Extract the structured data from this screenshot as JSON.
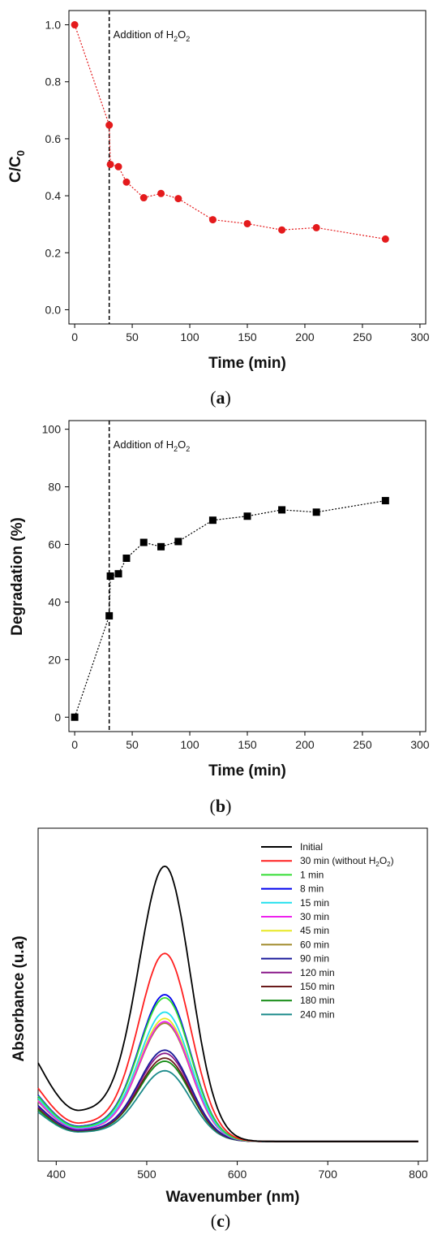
{
  "panels": [
    {
      "caption_open": "(",
      "caption_letter": "a",
      "caption_close": ")"
    },
    {
      "caption_open": "(",
      "caption_letter": "b",
      "caption_close": ")"
    },
    {
      "caption_open": "(",
      "caption_letter": "c",
      "caption_close": ")"
    }
  ],
  "chart_data": [
    {
      "type": "line",
      "xlabel": "Time (min)",
      "ylabel": "C/C0",
      "xlim": [
        -5,
        305
      ],
      "ylim": [
        -0.05,
        1.05
      ],
      "xticks": [
        0,
        50,
        100,
        150,
        200,
        250,
        300
      ],
      "yticks": [
        0.0,
        0.2,
        0.4,
        0.6,
        0.8,
        1.0
      ],
      "ytick_labels": [
        "0.0",
        "0.2",
        "0.4",
        "0.6",
        "0.8",
        "1.0"
      ],
      "marker": "circle",
      "color": "#e41a1c",
      "series": [
        {
          "x": [
            0,
            30,
            31,
            38,
            45,
            60,
            75,
            90,
            120,
            150,
            180,
            210,
            270
          ],
          "y": [
            1.0,
            0.648,
            0.51,
            0.502,
            0.448,
            0.393,
            0.408,
            0.39,
            0.316,
            0.302,
            0.28,
            0.288,
            0.248
          ]
        }
      ],
      "vline": {
        "x": 30,
        "label": "Addition of H2O2"
      }
    },
    {
      "type": "line",
      "xlabel": "Time (min)",
      "ylabel": "Degradation (%)",
      "xlim": [
        -5,
        305
      ],
      "ylim": [
        -5,
        103
      ],
      "xticks": [
        0,
        50,
        100,
        150,
        200,
        250,
        300
      ],
      "yticks": [
        0,
        20,
        40,
        60,
        80,
        100
      ],
      "marker": "square",
      "color": "#000000",
      "series": [
        {
          "x": [
            0,
            30,
            31,
            38,
            45,
            60,
            75,
            90,
            120,
            150,
            180,
            210,
            270
          ],
          "y": [
            0,
            35.2,
            49.0,
            49.8,
            55.2,
            60.7,
            59.2,
            61.0,
            68.4,
            69.8,
            72.0,
            71.2,
            75.2
          ]
        }
      ],
      "vline": {
        "x": 30,
        "label": "Addition of H2O2"
      }
    },
    {
      "type": "line",
      "xlabel": "Wavenumber (nm)",
      "ylabel": "Absorbance (u.a)",
      "xlim": [
        380,
        810
      ],
      "ylim": [
        -0.05,
        1.0
      ],
      "xticks": [
        400,
        500,
        600,
        700,
        800
      ],
      "yticks": [],
      "legend_position": "top-right",
      "series": [
        {
          "name": "Initial",
          "color": "#000000",
          "peak": 0.88,
          "base_left": 0.26,
          "base_min": 0.11
        },
        {
          "name": "30 min (without H2O2)",
          "color": "#ff2020",
          "peak": 0.605,
          "base_left": 0.18,
          "base_min": 0.07
        },
        {
          "name": "1 min",
          "color": "#33dd33",
          "peak": 0.465,
          "base_left": 0.155,
          "base_min": 0.058
        },
        {
          "name": "8 min",
          "color": "#0000ee",
          "peak": 0.475,
          "base_left": 0.158,
          "base_min": 0.06
        },
        {
          "name": "15 min",
          "color": "#22e0ee",
          "peak": 0.42,
          "base_left": 0.148,
          "base_min": 0.055
        },
        {
          "name": "30 min",
          "color": "#ee22ee",
          "peak": 0.39,
          "base_left": 0.14,
          "base_min": 0.052
        },
        {
          "name": "45 min",
          "color": "#e8e822",
          "peak": 0.4,
          "base_left": 0.142,
          "base_min": 0.053
        },
        {
          "name": "60 min",
          "color": "#a08a2a",
          "peak": 0.385,
          "base_left": 0.138,
          "base_min": 0.052
        },
        {
          "name": "90 min",
          "color": "#1a1a9a",
          "peak": 0.3,
          "base_left": 0.125,
          "base_min": 0.048
        },
        {
          "name": "120 min",
          "color": "#8a1a8a",
          "peak": 0.29,
          "base_left": 0.122,
          "base_min": 0.047
        },
        {
          "name": "150 min",
          "color": "#6a1a1a",
          "peak": 0.275,
          "base_left": 0.118,
          "base_min": 0.046
        },
        {
          "name": "180 min",
          "color": "#128a12",
          "peak": 0.265,
          "base_left": 0.112,
          "base_min": 0.045
        },
        {
          "name": "240 min",
          "color": "#1a8a8a",
          "peak": 0.235,
          "base_left": 0.105,
          "base_min": 0.042
        }
      ]
    }
  ]
}
